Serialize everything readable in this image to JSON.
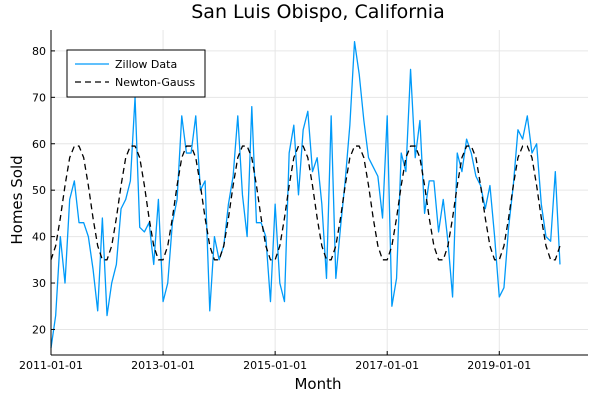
{
  "chart_data": {
    "type": "line",
    "title": "San Luis Obispo, California",
    "xlabel": "Month",
    "ylabel": "Homes Sold",
    "x_ticks": [
      "2011-01-01",
      "2013-01-01",
      "2015-01-01",
      "2017-01-01",
      "2019-01-01"
    ],
    "y_ticks": [
      20,
      30,
      40,
      50,
      60,
      70,
      80
    ],
    "xlim": [
      0,
      115
    ],
    "ylim": [
      14.5,
      84.5
    ],
    "grid": true,
    "legend_position": "top-left",
    "colors": {
      "zillow": "#009af9",
      "newton": "#000000"
    },
    "series": [
      {
        "name": "Zillow Data",
        "style": "solid",
        "values": [
          16,
          23,
          40,
          30,
          48,
          52,
          43,
          43,
          40,
          33,
          24,
          44,
          23,
          30,
          34,
          46,
          48,
          52,
          70,
          42,
          41,
          43,
          34,
          48,
          26,
          30,
          43,
          48,
          66,
          58,
          58,
          66,
          50,
          52,
          24,
          40,
          35,
          38,
          47,
          53,
          66,
          49,
          40,
          68,
          43,
          43,
          40,
          26,
          47,
          30,
          26,
          58,
          64,
          49,
          63,
          67,
          54,
          57,
          47,
          31,
          66,
          31,
          42,
          52,
          64,
          82,
          75,
          65,
          57,
          55,
          53,
          44,
          66,
          25,
          31,
          58,
          54,
          76,
          57,
          65,
          45,
          52,
          52,
          41,
          48,
          39,
          27,
          58,
          54,
          61,
          58,
          53,
          51,
          46,
          51,
          40,
          27,
          29,
          42,
          51,
          63,
          61,
          66,
          58,
          60,
          47,
          40,
          39,
          54,
          34
        ]
      },
      {
        "name": "Newton-Gauss",
        "style": "dashed",
        "values": [
          35,
          38,
          44,
          51,
          57,
          59.5,
          59.5,
          57,
          51,
          44,
          38,
          35,
          35,
          38,
          44,
          51,
          57,
          59.5,
          59.5,
          57,
          51,
          44,
          38,
          35,
          35,
          38,
          44,
          51,
          57,
          59.5,
          59.5,
          57,
          51,
          44,
          38,
          35,
          35,
          38,
          44,
          51,
          57,
          59.5,
          59.5,
          57,
          51,
          44,
          38,
          35,
          35,
          38,
          44,
          51,
          57,
          59.5,
          59.5,
          57,
          51,
          44,
          38,
          35,
          35,
          38,
          44,
          51,
          57,
          59.5,
          59.5,
          57,
          51,
          44,
          38,
          35,
          35,
          38,
          44,
          51,
          57,
          59.5,
          59.5,
          57,
          51,
          44,
          38,
          35,
          35,
          38,
          44,
          51,
          57,
          59.5,
          59.5,
          57,
          51,
          44,
          38,
          35,
          35,
          38,
          44,
          51,
          57,
          59.5,
          59.5,
          57,
          51,
          44,
          38,
          35,
          35,
          38
        ]
      }
    ]
  }
}
